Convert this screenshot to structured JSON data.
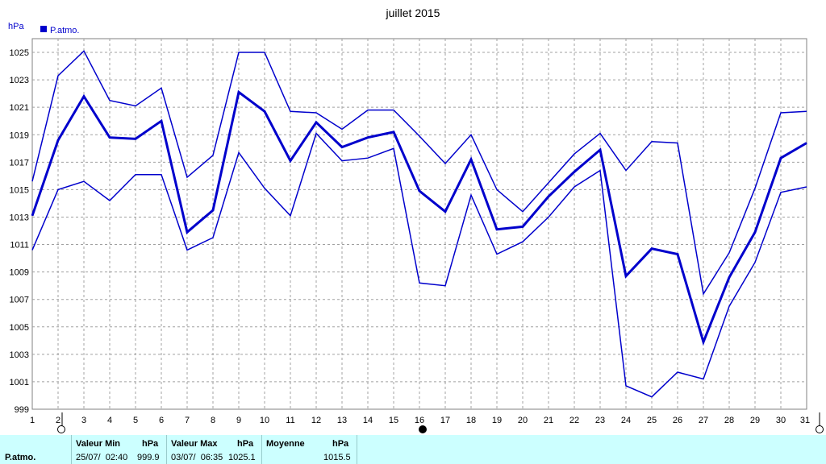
{
  "chart_data": {
    "type": "line",
    "title": "juillet 2015",
    "ylabel": "hPa",
    "ylim": [
      999,
      1026
    ],
    "y_ticks": [
      999,
      1001,
      1003,
      1005,
      1007,
      1009,
      1011,
      1013,
      1015,
      1017,
      1019,
      1021,
      1023,
      1025
    ],
    "x": [
      1,
      2,
      3,
      4,
      5,
      6,
      7,
      8,
      9,
      10,
      11,
      12,
      13,
      14,
      15,
      16,
      17,
      18,
      19,
      20,
      21,
      22,
      23,
      24,
      25,
      26,
      27,
      28,
      29,
      30,
      31
    ],
    "grid": true,
    "legend": {
      "position": "top-left",
      "label": "P.atmo."
    },
    "line_color": "#0000cc",
    "series": [
      {
        "role": "max",
        "values": [
          1015.6,
          1023.3,
          1025.1,
          1021.5,
          1021.1,
          1022.4,
          1015.9,
          1017.5,
          1025.0,
          1025.0,
          1020.7,
          1020.6,
          1019.4,
          1020.8,
          1020.8,
          1018.9,
          1016.9,
          1019.0,
          1015.0,
          1013.4,
          1015.5,
          1017.6,
          1019.1,
          1016.4,
          1018.5,
          1018.4,
          1007.4,
          1010.4,
          1015.1,
          1020.6,
          1020.7
        ]
      },
      {
        "role": "mean",
        "values": [
          1013.1,
          1018.6,
          1021.8,
          1018.8,
          1018.7,
          1020.0,
          1011.9,
          1013.5,
          1022.1,
          1020.7,
          1017.1,
          1019.9,
          1018.1,
          1018.8,
          1019.2,
          1014.9,
          1013.4,
          1017.2,
          1012.1,
          1012.3,
          1014.5,
          1016.3,
          1017.9,
          1008.7,
          1010.7,
          1010.3,
          1003.9,
          1008.6,
          1011.9,
          1017.3,
          1018.4
        ]
      },
      {
        "role": "min",
        "values": [
          1010.6,
          1015.0,
          1015.6,
          1014.2,
          1016.1,
          1016.1,
          1010.6,
          1011.5,
          1017.7,
          1015.1,
          1013.1,
          1019.1,
          1017.1,
          1017.3,
          1018.0,
          1008.2,
          1008.0,
          1014.6,
          1010.3,
          1011.2,
          1013.0,
          1015.2,
          1016.4,
          1000.7,
          999.9,
          1001.7,
          1001.2,
          1006.5,
          1009.7,
          1014.8,
          1015.2
        ]
      }
    ],
    "moon_markers": [
      {
        "day": 2,
        "phase": "full-moon"
      },
      {
        "day": 16,
        "phase": "new-moon"
      },
      {
        "day": 31,
        "phase": "full-moon"
      }
    ],
    "tick_markers": [
      2,
      31
    ]
  },
  "footer": {
    "row_label": "P.atmo.",
    "min": {
      "header": "Valeur Min",
      "unit": "hPa",
      "datetime": "25/07/  02:40",
      "value": "999.9"
    },
    "max": {
      "header": "Valeur Max",
      "unit": "hPa",
      "datetime": "03/07/  06:35",
      "value": "1025.1"
    },
    "avg": {
      "header": "Moyenne",
      "unit": "hPa",
      "value": "1015.5"
    }
  }
}
